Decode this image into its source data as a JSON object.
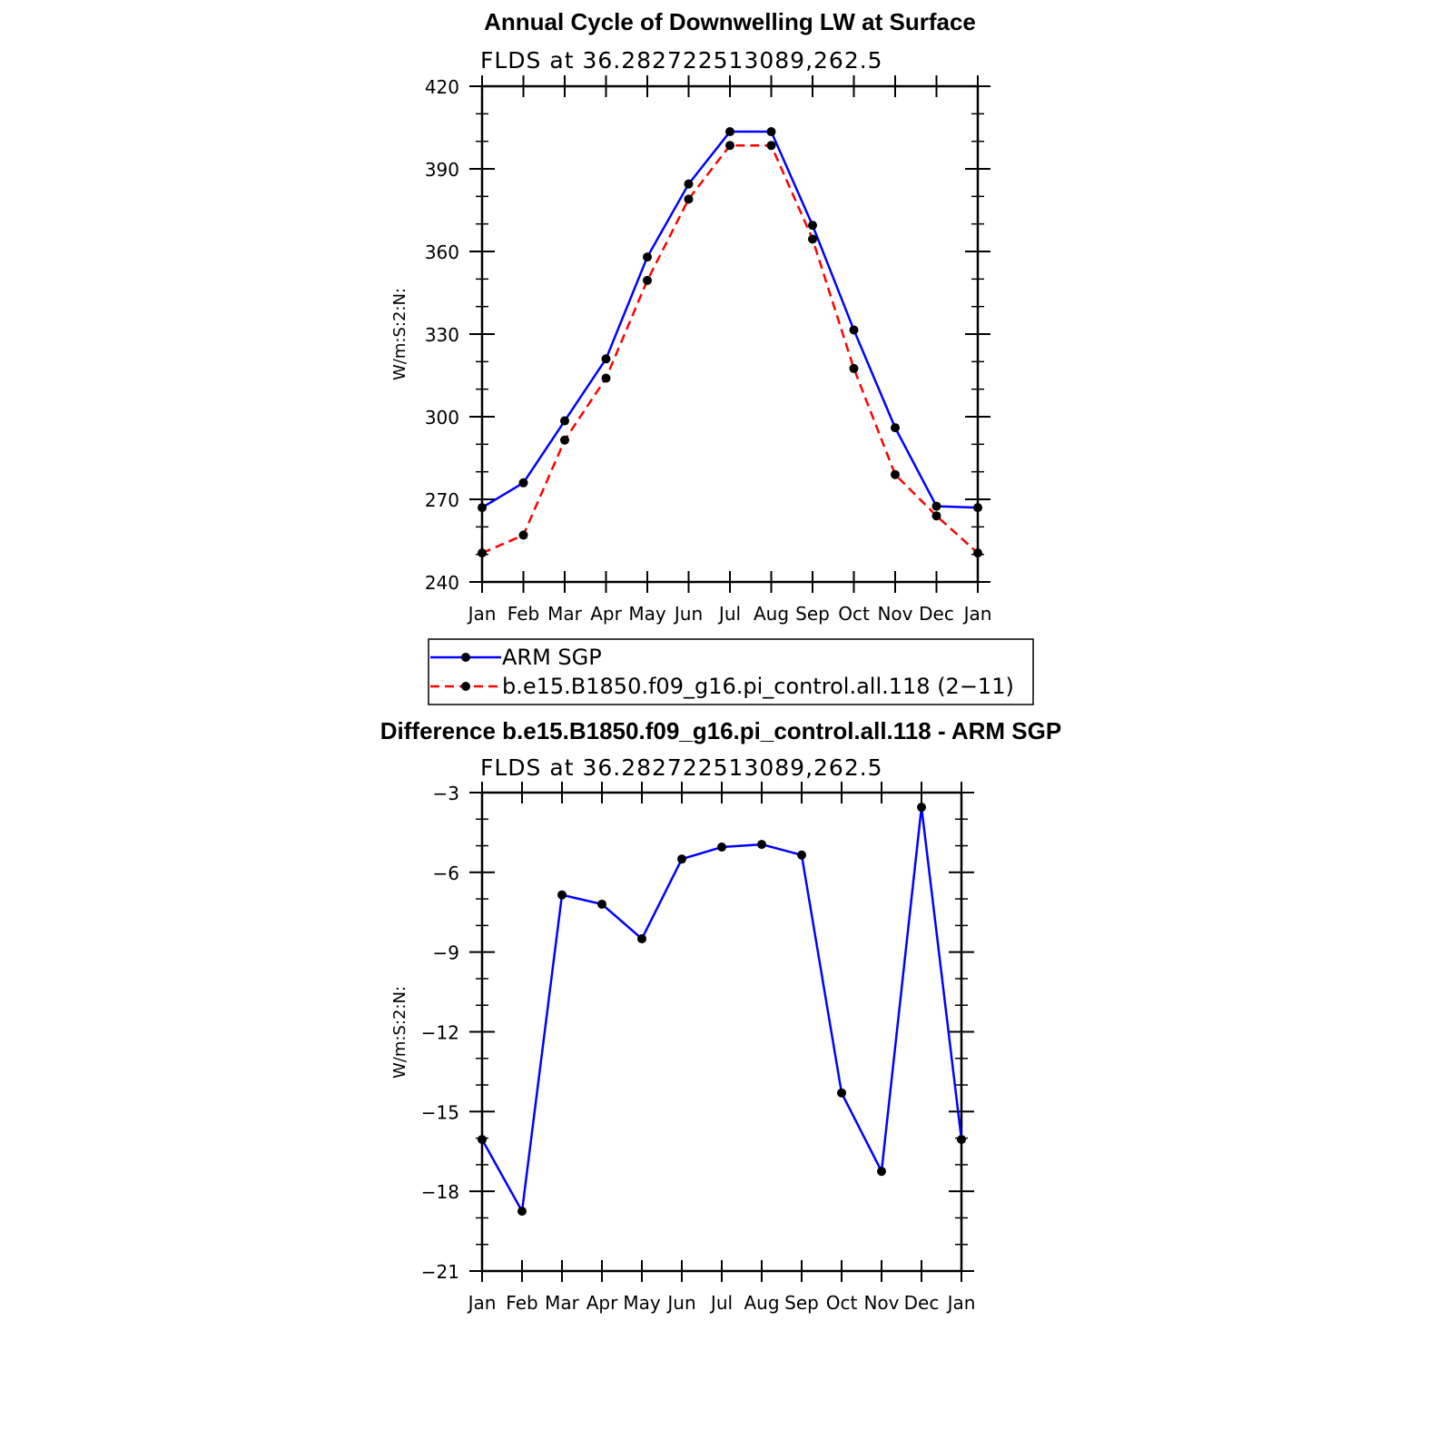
{
  "chart_data": [
    {
      "type": "line",
      "title": "Annual Cycle of Downwelling LW at Surface",
      "subtitle": "FLDS at 36.282722513089,262.5",
      "ylabel": "W/m:S:2:N:",
      "xlabel": "",
      "categories": [
        "Jan",
        "Feb",
        "Mar",
        "Apr",
        "May",
        "Jun",
        "Jul",
        "Aug",
        "Sep",
        "Oct",
        "Nov",
        "Dec",
        "Jan"
      ],
      "ylim": [
        240,
        420
      ],
      "yticks": [
        "240",
        "270",
        "300",
        "330",
        "360",
        "390",
        "420"
      ],
      "grid": false,
      "legend_position": "bottom",
      "series": [
        {
          "name": "ARM SGP",
          "color": "#0000ff",
          "dash": "solid",
          "values": [
            267,
            276,
            298.5,
            321,
            358,
            384.5,
            403.5,
            403.5,
            369.5,
            331.5,
            296,
            267.5,
            267
          ]
        },
        {
          "name": "b.e15.B1850.f09_g16.pi_control.all.118 (2−11)",
          "color": "#ff0000",
          "dash": "dashed",
          "values": [
            250.5,
            257,
            291.5,
            314,
            349.5,
            379,
            398.5,
            398.5,
            364.5,
            317.5,
            279,
            264,
            250.5
          ]
        }
      ]
    },
    {
      "type": "line",
      "title": "Difference b.e15.B1850.f09_g16.pi_control.all.118 - ARM SGP",
      "subtitle": "FLDS at 36.282722513089,262.5",
      "ylabel": "W/m:S:2:N:",
      "xlabel": "",
      "categories": [
        "Jan",
        "Feb",
        "Mar",
        "Apr",
        "May",
        "Jun",
        "Jul",
        "Aug",
        "Sep",
        "Oct",
        "Nov",
        "Dec",
        "Jan"
      ],
      "ylim": [
        -21,
        -3
      ],
      "yticks": [
        "−21",
        "−18",
        "−15",
        "−12",
        "−9",
        "−6",
        "−3"
      ],
      "grid": false,
      "series": [
        {
          "name": "",
          "color": "#0000ff",
          "dash": "solid",
          "values": [
            -16.05,
            -18.75,
            -6.85,
            -7.2,
            -8.5,
            -5.5,
            -5.05,
            -4.95,
            -5.35,
            -14.3,
            -17.25,
            -3.55,
            -16.05
          ]
        }
      ]
    }
  ]
}
